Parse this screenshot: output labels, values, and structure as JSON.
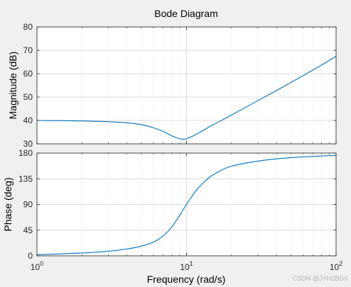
{
  "chart_data": {
    "type": "line",
    "title": "Bode Diagram",
    "xlabel": "Frequency  (rad/s)",
    "x_scale": "log",
    "xlim": [
      1,
      100
    ],
    "x_ticks": [
      {
        "value": 1,
        "base": "10",
        "exp": "0"
      },
      {
        "value": 10,
        "base": "10",
        "exp": "1"
      },
      {
        "value": 100,
        "base": "10",
        "exp": "2"
      }
    ],
    "grid": true,
    "line_color": "#0072bd",
    "panels": [
      {
        "name": "magnitude",
        "ylabel": "Magnitude (dB)",
        "ylim": [
          30,
          80
        ],
        "yticks": [
          30,
          40,
          50,
          60,
          70,
          80
        ],
        "series": [
          {
            "x": [
              1,
              1.5,
              2,
              3,
              4,
              5,
              6,
              7,
              8,
              9,
              9.5,
              10,
              11,
              12,
              15,
              20,
              30,
              40,
              50,
              60,
              70,
              80,
              90,
              100
            ],
            "values": [
              40,
              39.9,
              39.8,
              39.5,
              39,
              38.2,
              36.9,
              35.3,
              33.4,
              32.2,
              32.0,
              32.2,
              33.3,
              34.6,
              38.1,
              42.3,
              48.5,
              52.8,
              56.3,
              59.1,
              61.6,
              63.7,
              65.7,
              67.5
            ]
          }
        ]
      },
      {
        "name": "phase",
        "ylabel": "Phase (deg)",
        "ylim": [
          0,
          180
        ],
        "yticks": [
          0,
          45,
          90,
          135,
          180
        ],
        "series": [
          {
            "x": [
              1,
              2,
              3,
              4,
              5,
              6,
              7,
              8,
              9,
              10,
              11,
              12,
              14,
              16,
              20,
              30,
              50,
              100
            ],
            "values": [
              2,
              5,
              8,
              12,
              17,
              24,
              35,
              51,
              71,
              90,
              106,
              119,
              136,
              146,
              157,
              166,
              172,
              176
            ]
          }
        ]
      }
    ]
  },
  "watermark": "CSDN @JYHZBDX"
}
